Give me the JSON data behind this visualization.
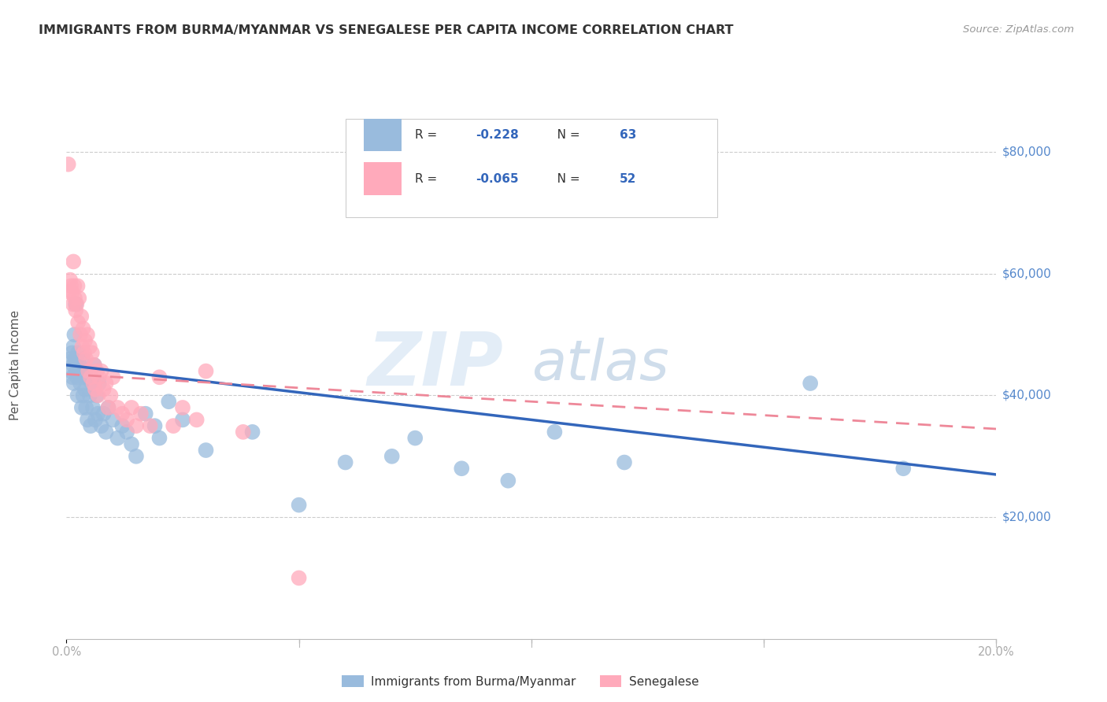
{
  "title": "IMMIGRANTS FROM BURMA/MYANMAR VS SENEGALESE PER CAPITA INCOME CORRELATION CHART",
  "source": "Source: ZipAtlas.com",
  "ylabel": "Per Capita Income",
  "y_ticks": [
    0,
    20000,
    40000,
    60000,
    80000
  ],
  "y_tick_labels": [
    "",
    "$20,000",
    "$40,000",
    "$60,000",
    "$80,000"
  ],
  "x_lim": [
    0,
    0.2
  ],
  "y_lim": [
    0,
    90000
  ],
  "watermark_zip": "ZIP",
  "watermark_atlas": "atlas",
  "legend_line1_r": "R = ",
  "legend_line1_rv": "-0.228",
  "legend_line1_n": "   N = 63",
  "legend_line2_r": "R = ",
  "legend_line2_rv": "-0.065",
  "legend_line2_n": "   N = 52",
  "blue_color": "#99BBDD",
  "pink_color": "#FFAABB",
  "blue_line_color": "#3366BB",
  "pink_line_color": "#EE8899",
  "grid_color": "#CCCCCC",
  "title_color": "#333333",
  "source_color": "#999999",
  "tick_color_y": "#5588CC",
  "tick_color_x": "#AAAAAA",
  "scatter_blue_x": [
    0.0008,
    0.001,
    0.0012,
    0.0013,
    0.0015,
    0.0015,
    0.0016,
    0.0017,
    0.0018,
    0.002,
    0.0021,
    0.0022,
    0.0023,
    0.0024,
    0.0025,
    0.0028,
    0.003,
    0.0031,
    0.0033,
    0.0035,
    0.0036,
    0.0037,
    0.004,
    0.0042,
    0.0044,
    0.0045,
    0.0047,
    0.005,
    0.0052,
    0.0055,
    0.0057,
    0.006,
    0.0062,
    0.0065,
    0.0068,
    0.007,
    0.0075,
    0.008,
    0.0085,
    0.009,
    0.01,
    0.011,
    0.012,
    0.013,
    0.014,
    0.015,
    0.017,
    0.019,
    0.02,
    0.022,
    0.025,
    0.03,
    0.04,
    0.05,
    0.06,
    0.07,
    0.075,
    0.085,
    0.095,
    0.105,
    0.12,
    0.16,
    0.18
  ],
  "scatter_blue_y": [
    46000,
    44000,
    47000,
    43000,
    45000,
    48000,
    42000,
    50000,
    46000,
    55000,
    44000,
    46000,
    43000,
    40000,
    47000,
    45000,
    42000,
    44000,
    38000,
    46000,
    40000,
    43000,
    41000,
    38000,
    44000,
    36000,
    43000,
    40000,
    35000,
    42000,
    38000,
    45000,
    36000,
    40000,
    37000,
    42000,
    35000,
    37000,
    34000,
    38000,
    36000,
    33000,
    35000,
    34000,
    32000,
    30000,
    37000,
    35000,
    33000,
    39000,
    36000,
    31000,
    34000,
    22000,
    29000,
    30000,
    33000,
    28000,
    26000,
    34000,
    29000,
    42000,
    28000
  ],
  "scatter_pink_x": [
    0.0004,
    0.0006,
    0.0008,
    0.001,
    0.0012,
    0.0014,
    0.0015,
    0.0017,
    0.0018,
    0.002,
    0.0022,
    0.0024,
    0.0025,
    0.0027,
    0.003,
    0.0032,
    0.0034,
    0.0036,
    0.0038,
    0.004,
    0.0042,
    0.0045,
    0.0047,
    0.005,
    0.0052,
    0.0055,
    0.0058,
    0.006,
    0.0062,
    0.0065,
    0.0068,
    0.007,
    0.0075,
    0.008,
    0.0085,
    0.009,
    0.0095,
    0.01,
    0.011,
    0.012,
    0.013,
    0.014,
    0.015,
    0.016,
    0.018,
    0.02,
    0.023,
    0.025,
    0.028,
    0.03,
    0.038,
    0.05
  ],
  "scatter_pink_y": [
    78000,
    57000,
    59000,
    58000,
    57000,
    55000,
    62000,
    58000,
    56000,
    54000,
    55000,
    58000,
    52000,
    56000,
    50000,
    53000,
    48000,
    51000,
    47000,
    49000,
    46000,
    50000,
    44000,
    48000,
    43000,
    47000,
    42000,
    45000,
    41000,
    44000,
    40000,
    43000,
    44000,
    41000,
    42000,
    38000,
    40000,
    43000,
    38000,
    37000,
    36000,
    38000,
    35000,
    37000,
    35000,
    43000,
    35000,
    38000,
    36000,
    44000,
    34000,
    10000
  ]
}
